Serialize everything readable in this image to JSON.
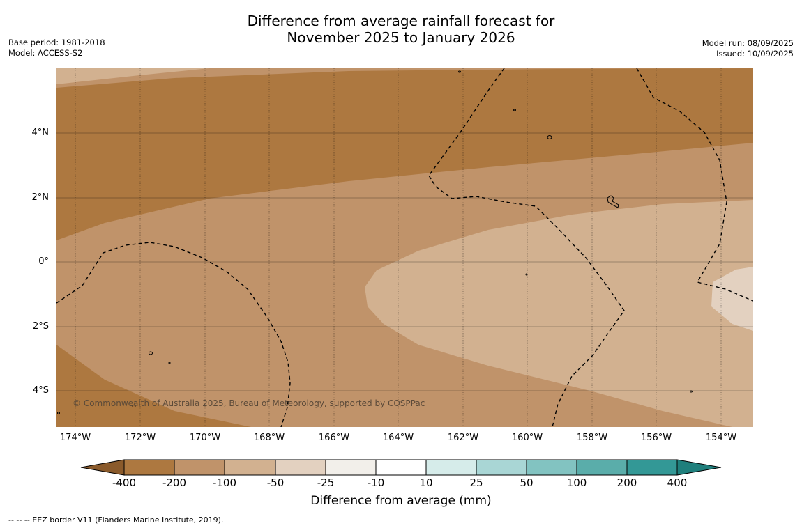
{
  "title": {
    "line1": "Difference from average rainfall forecast for",
    "line2": "November 2025 to January 2026"
  },
  "meta_left": {
    "base_period": "Base period: 1981-2018",
    "model": "Model: ACCESS-S2"
  },
  "meta_right": {
    "model_run": "Model run: 08/09/2025",
    "issued": "Issued: 10/09/2025"
  },
  "map": {
    "lat_labels": [
      "4°N",
      "2°N",
      "0°",
      "2°S",
      "4°S"
    ],
    "lon_labels": [
      "174°W",
      "172°W",
      "170°W",
      "168°W",
      "166°W",
      "164°W",
      "162°W",
      "160°W",
      "158°W",
      "156°W",
      "154°W"
    ],
    "credit": "© Commonwealth of Australia 2025, Bureau of Meteorology, supported by COSPPac",
    "colors": {
      "lt_neg200": "#ad7840",
      "neg200_neg100": "#c0936a",
      "neg100_neg50": "#d2b190",
      "neg50_neg25": "#e3d1c0"
    }
  },
  "colorbar": {
    "title": "Difference from average (mm)",
    "tick_labels": [
      "-400",
      "-200",
      "-100",
      "-50",
      "-25",
      "-10",
      "10",
      "25",
      "50",
      "100",
      "200",
      "400"
    ],
    "colors": [
      "#8a5a2b",
      "#ad7840",
      "#c0936a",
      "#d2b190",
      "#e3d1c0",
      "#f2efea",
      "#ffffff",
      "#d6ecea",
      "#a9d6d5",
      "#82c3c1",
      "#5aadaa",
      "#339896",
      "#1f7f7c"
    ]
  },
  "footnote": "--  --  -- EEZ border V11 (Flanders Marine Institute, 2019)."
}
